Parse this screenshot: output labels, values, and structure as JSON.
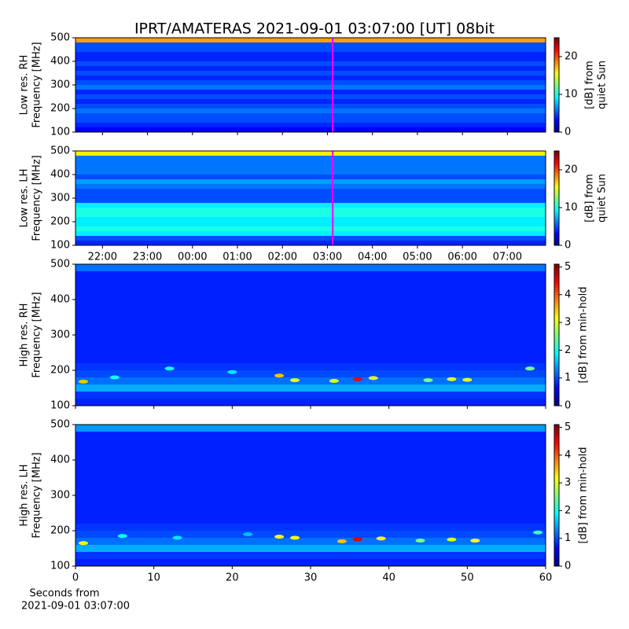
{
  "title": "IPRT/AMATERAS 2021-09-01 03:07:00 [UT]   08bit",
  "chart_data": [
    {
      "type": "heatmap",
      "ylabel": [
        "Low res. RH",
        "Frequency [MHz]"
      ],
      "colorbar_label": [
        "[dB] from",
        "quiet Sun"
      ],
      "xlim": [
        21.4,
        31.85
      ],
      "xticks": [
        22,
        23,
        24,
        25,
        26,
        27,
        28,
        29,
        30,
        31
      ],
      "xtick_labels": false,
      "ylim": [
        100,
        500
      ],
      "yticks": [
        100,
        200,
        300,
        400,
        500
      ],
      "clim": [
        0,
        25
      ],
      "cticks": [
        0,
        10,
        20
      ],
      "ybins": [
        100,
        120,
        140,
        160,
        180,
        200,
        220,
        240,
        260,
        280,
        300,
        320,
        340,
        360,
        380,
        400,
        420,
        440,
        460,
        480,
        500
      ],
      "rows": [
        3,
        4,
        5,
        5,
        6,
        5,
        4,
        5,
        4,
        6,
        5,
        4,
        5,
        4,
        5,
        4,
        4,
        5,
        5,
        18
      ],
      "marker_x": 27.117,
      "marker_color": "#ff00ff"
    },
    {
      "type": "heatmap",
      "ylabel": [
        "Low res. LH",
        "Frequency [MHz]"
      ],
      "colorbar_label": [
        "[dB] from",
        "quiet Sun"
      ],
      "xlim": [
        21.4,
        31.85
      ],
      "xticks": [
        {
          "value": 22,
          "label": "22:00"
        },
        {
          "value": 23,
          "label": "23:00"
        },
        {
          "value": 24,
          "label": "00:00"
        },
        {
          "value": 25,
          "label": "01:00"
        },
        {
          "value": 26,
          "label": "02:00"
        },
        {
          "value": 27,
          "label": "03:00"
        },
        {
          "value": 28,
          "label": "04:00"
        },
        {
          "value": 29,
          "label": "05:00"
        },
        {
          "value": 30,
          "label": "06:00"
        },
        {
          "value": 31,
          "label": "07:00"
        }
      ],
      "xtick_labels": true,
      "ylim": [
        100,
        500
      ],
      "yticks": [
        100,
        200,
        300,
        400,
        500
      ],
      "clim": [
        0,
        25
      ],
      "cticks": [
        0,
        10,
        20
      ],
      "ybins": [
        100,
        120,
        140,
        160,
        180,
        200,
        220,
        240,
        260,
        280,
        300,
        320,
        340,
        360,
        380,
        400,
        420,
        440,
        460,
        480,
        500
      ],
      "rows": [
        4,
        5,
        9,
        10,
        9,
        9,
        10,
        10,
        9,
        5,
        5,
        5,
        6,
        7,
        5,
        6,
        6,
        6,
        6,
        16
      ],
      "marker_x": 27.117,
      "marker_color": "#ff00ff"
    },
    {
      "type": "heatmap",
      "ylabel": [
        "High res. RH",
        "Frequency [MHz]"
      ],
      "colorbar_label": [
        "[dB] from min-hold"
      ],
      "xlim": [
        0,
        60
      ],
      "xticks": [
        0,
        10,
        20,
        30,
        40,
        50,
        60
      ],
      "xtick_labels": false,
      "ylim": [
        100,
        500
      ],
      "yticks": [
        100,
        200,
        300,
        400,
        500
      ],
      "clim": [
        0,
        5.1
      ],
      "cticks": [
        0,
        1,
        2,
        3,
        4,
        5
      ],
      "ybins": [
        100,
        120,
        140,
        160,
        180,
        200,
        220,
        240,
        260,
        280,
        300,
        320,
        340,
        360,
        380,
        400,
        420,
        440,
        460,
        480,
        500
      ],
      "rows": [
        0.8,
        0.9,
        1.5,
        1.2,
        1.0,
        0.9,
        0.8,
        0.8,
        0.8,
        0.8,
        0.8,
        0.8,
        0.8,
        0.8,
        0.8,
        0.8,
        0.8,
        0.8,
        0.8,
        1.2
      ],
      "bursts": {
        "x": [
          1,
          5,
          12,
          20,
          26,
          28,
          33,
          36,
          38,
          45,
          48,
          50,
          58
        ],
        "y": [
          168,
          180,
          205,
          195,
          185,
          172,
          170,
          175,
          178,
          172,
          175,
          173,
          205
        ],
        "values": [
          3.5,
          2,
          2,
          1.8,
          3.5,
          3,
          3,
          4.5,
          3,
          2.5,
          3,
          3,
          2.5
        ]
      }
    },
    {
      "type": "heatmap",
      "ylabel": [
        "High res. LH",
        "Frequency [MHz]"
      ],
      "colorbar_label": [
        "[dB] from min-hold"
      ],
      "xlim": [
        0,
        60
      ],
      "xticks": [
        0,
        10,
        20,
        30,
        40,
        50,
        60
      ],
      "xtick_labels": true,
      "xlabel": [
        "Seconds from",
        "2021-09-01 03:07:00"
      ],
      "ylim": [
        100,
        500
      ],
      "yticks": [
        100,
        200,
        300,
        400,
        500
      ],
      "clim": [
        0,
        5.1
      ],
      "cticks": [
        0,
        1,
        2,
        3,
        4,
        5
      ],
      "ybins": [
        100,
        120,
        140,
        160,
        180,
        200,
        220,
        240,
        260,
        280,
        300,
        320,
        340,
        360,
        380,
        400,
        420,
        440,
        460,
        480,
        500
      ],
      "rows": [
        0.8,
        0.9,
        1.5,
        1.2,
        1.0,
        0.9,
        0.8,
        0.8,
        0.8,
        0.8,
        0.8,
        0.8,
        0.8,
        0.8,
        0.8,
        0.8,
        0.8,
        0.8,
        0.8,
        1.4
      ],
      "bursts": {
        "x": [
          1,
          6,
          13,
          22,
          26,
          28,
          34,
          36,
          39,
          44,
          48,
          51,
          59
        ],
        "y": [
          165,
          185,
          180,
          190,
          183,
          180,
          170,
          176,
          178,
          172,
          175,
          172,
          195
        ],
        "values": [
          3.2,
          2,
          1.8,
          1.6,
          3.2,
          3.2,
          3.5,
          4.6,
          3.2,
          2.5,
          3,
          3.2,
          2.2
        ]
      }
    }
  ]
}
